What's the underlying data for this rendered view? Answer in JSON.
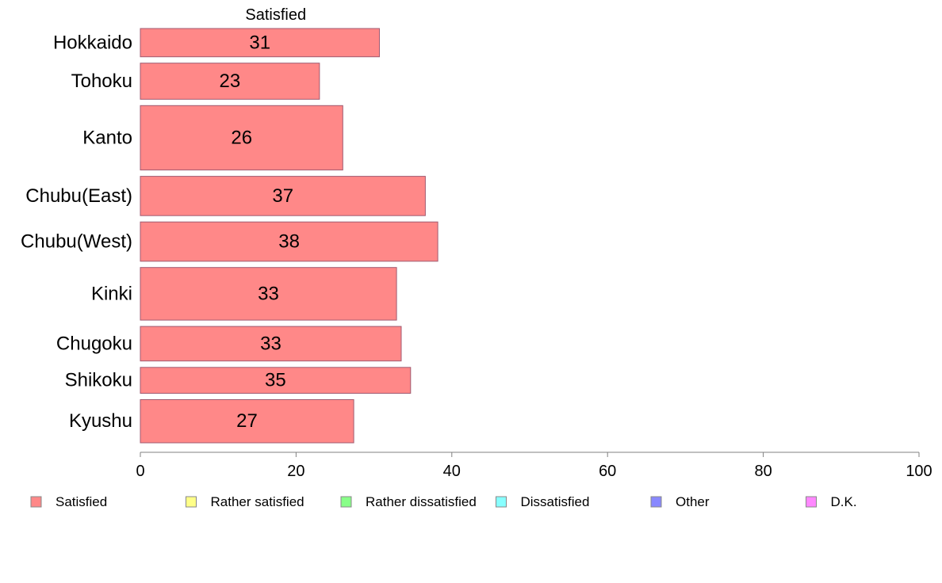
{
  "chart_data": {
    "type": "bar",
    "orientation": "horizontal",
    "stacked": true,
    "categories": [
      "Hokkaido",
      "Tohoku",
      "Kanto",
      "Chubu(East)",
      "Chubu(West)",
      "Kinki",
      "Chugoku",
      "Shikoku",
      "Kyushu"
    ],
    "values": [
      30.7,
      23.0,
      26.0,
      36.6,
      38.2,
      32.9,
      33.5,
      34.7,
      27.4
    ],
    "value_labels": [
      "31",
      "23",
      "26",
      "37",
      "38",
      "33",
      "33",
      "35",
      "27"
    ],
    "weights": [
      36,
      46,
      82,
      50,
      50,
      67,
      44,
      33,
      55
    ],
    "segment_label": "Satisfied",
    "xlim": [
      0,
      100
    ],
    "xticks": [
      0,
      20,
      40,
      60,
      80,
      100
    ],
    "xtick_labels": [
      "0",
      "20",
      "40",
      "60",
      "80",
      "100"
    ],
    "grid": false,
    "legend_position": "bottom",
    "legend": [
      {
        "label": "Satisfied",
        "color": "#ff8888"
      },
      {
        "label": "Rather satisfied",
        "color": "#ffff88"
      },
      {
        "label": "Rather dissatisfied",
        "color": "#88ff88"
      },
      {
        "label": "Dissatisfied",
        "color": "#88ffff"
      },
      {
        "label": "Other",
        "color": "#8888ff"
      },
      {
        "label": "D.K.",
        "color": "#ff88ff"
      }
    ],
    "bar_color": "#ff8888",
    "bar_stroke": "#a05a70"
  }
}
